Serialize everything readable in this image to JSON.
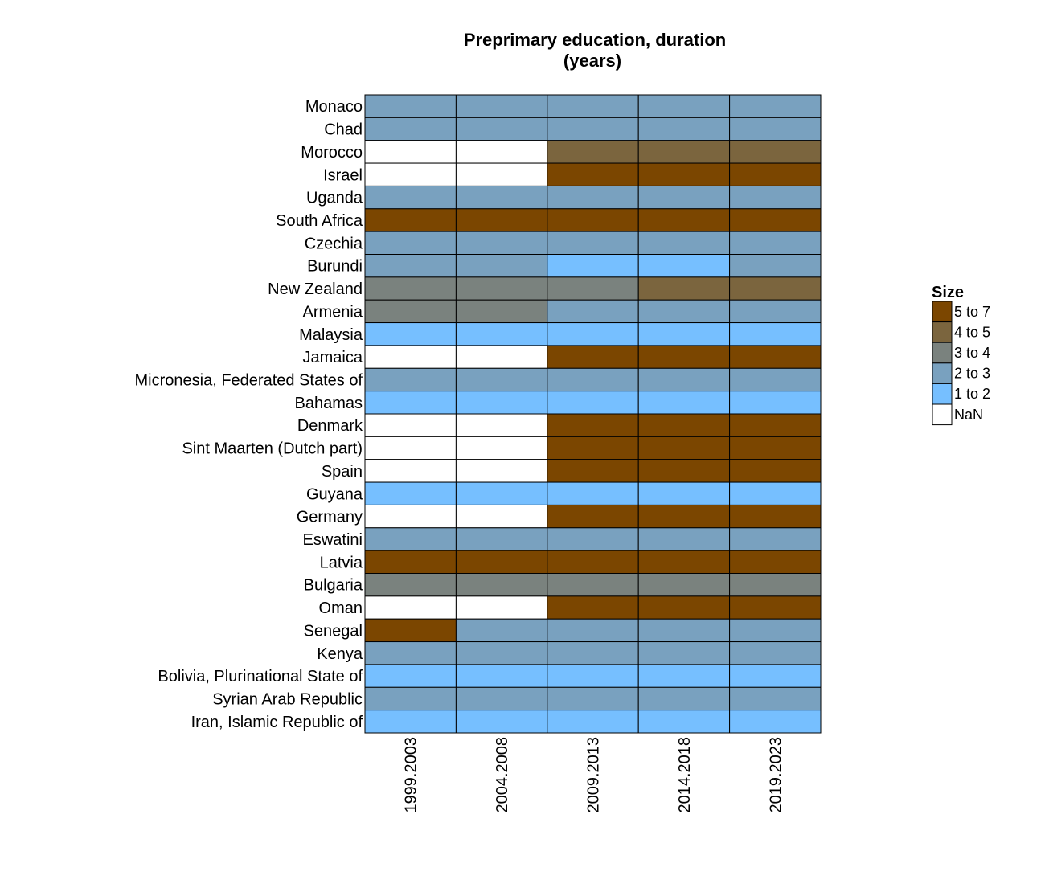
{
  "chart_data": {
    "type": "heatmap",
    "title_lines": [
      "Preprimary education, duration",
      "(years)"
    ],
    "xlabel": "",
    "ylabel": "",
    "columns": [
      "1999.2003",
      "2004.2008",
      "2009.2013",
      "2014.2018",
      "2019.2023"
    ],
    "rows": [
      {
        "name": "Monaco",
        "values": [
          "2 to 3",
          "2 to 3",
          "2 to 3",
          "2 to 3",
          "2 to 3"
        ]
      },
      {
        "name": "Chad",
        "values": [
          "2 to 3",
          "2 to 3",
          "2 to 3",
          "2 to 3",
          "2 to 3"
        ]
      },
      {
        "name": "Morocco",
        "values": [
          "NaN",
          "NaN",
          "4 to 5",
          "4 to 5",
          "4 to 5"
        ]
      },
      {
        "name": "Israel",
        "values": [
          "NaN",
          "NaN",
          "5 to 7",
          "5 to 7",
          "5 to 7"
        ]
      },
      {
        "name": "Uganda",
        "values": [
          "2 to 3",
          "2 to 3",
          "2 to 3",
          "2 to 3",
          "2 to 3"
        ]
      },
      {
        "name": "South Africa",
        "values": [
          "5 to 7",
          "5 to 7",
          "5 to 7",
          "5 to 7",
          "5 to 7"
        ]
      },
      {
        "name": "Czechia",
        "values": [
          "2 to 3",
          "2 to 3",
          "2 to 3",
          "2 to 3",
          "2 to 3"
        ]
      },
      {
        "name": "Burundi",
        "values": [
          "2 to 3",
          "2 to 3",
          "1 to 2",
          "1 to 2",
          "2 to 3"
        ]
      },
      {
        "name": "New Zealand",
        "values": [
          "3 to 4",
          "3 to 4",
          "3 to 4",
          "4 to 5",
          "4 to 5"
        ]
      },
      {
        "name": "Armenia",
        "values": [
          "3 to 4",
          "3 to 4",
          "2 to 3",
          "2 to 3",
          "2 to 3"
        ]
      },
      {
        "name": "Malaysia",
        "values": [
          "1 to 2",
          "1 to 2",
          "1 to 2",
          "1 to 2",
          "1 to 2"
        ]
      },
      {
        "name": "Jamaica",
        "values": [
          "NaN",
          "NaN",
          "5 to 7",
          "5 to 7",
          "5 to 7"
        ]
      },
      {
        "name": "Micronesia, Federated States of",
        "values": [
          "2 to 3",
          "2 to 3",
          "2 to 3",
          "2 to 3",
          "2 to 3"
        ]
      },
      {
        "name": "Bahamas",
        "values": [
          "1 to 2",
          "1 to 2",
          "1 to 2",
          "1 to 2",
          "1 to 2"
        ]
      },
      {
        "name": "Denmark",
        "values": [
          "NaN",
          "NaN",
          "5 to 7",
          "5 to 7",
          "5 to 7"
        ]
      },
      {
        "name": "Sint Maarten (Dutch part)",
        "values": [
          "NaN",
          "NaN",
          "5 to 7",
          "5 to 7",
          "5 to 7"
        ]
      },
      {
        "name": "Spain",
        "values": [
          "NaN",
          "NaN",
          "5 to 7",
          "5 to 7",
          "5 to 7"
        ]
      },
      {
        "name": "Guyana",
        "values": [
          "1 to 2",
          "1 to 2",
          "1 to 2",
          "1 to 2",
          "1 to 2"
        ]
      },
      {
        "name": "Germany",
        "values": [
          "NaN",
          "NaN",
          "5 to 7",
          "5 to 7",
          "5 to 7"
        ]
      },
      {
        "name": "Eswatini",
        "values": [
          "2 to 3",
          "2 to 3",
          "2 to 3",
          "2 to 3",
          "2 to 3"
        ]
      },
      {
        "name": "Latvia",
        "values": [
          "5 to 7",
          "5 to 7",
          "5 to 7",
          "5 to 7",
          "5 to 7"
        ]
      },
      {
        "name": "Bulgaria",
        "values": [
          "3 to 4",
          "3 to 4",
          "3 to 4",
          "3 to 4",
          "3 to 4"
        ]
      },
      {
        "name": "Oman",
        "values": [
          "NaN",
          "NaN",
          "5 to 7",
          "5 to 7",
          "5 to 7"
        ]
      },
      {
        "name": "Senegal",
        "values": [
          "5 to 7",
          "2 to 3",
          "2 to 3",
          "2 to 3",
          "2 to 3"
        ]
      },
      {
        "name": "Kenya",
        "values": [
          "2 to 3",
          "2 to 3",
          "2 to 3",
          "2 to 3",
          "2 to 3"
        ]
      },
      {
        "name": "Bolivia, Plurinational State of",
        "values": [
          "1 to 2",
          "1 to 2",
          "1 to 2",
          "1 to 2",
          "1 to 2"
        ]
      },
      {
        "name": "Syrian Arab Republic",
        "values": [
          "2 to 3",
          "2 to 3",
          "2 to 3",
          "2 to 3",
          "2 to 3"
        ]
      },
      {
        "name": "Iran, Islamic Republic of",
        "values": [
          "1 to 2",
          "1 to 2",
          "1 to 2",
          "1 to 2",
          "1 to 2"
        ]
      }
    ],
    "legend": {
      "title": "Size",
      "position": "right",
      "items": [
        {
          "label": "5 to 7",
          "color": "#7b4600"
        },
        {
          "label": "4 to 5",
          "color": "#7b653e"
        },
        {
          "label": "3 to 4",
          "color": "#7a827e"
        },
        {
          "label": "2 to 3",
          "color": "#79a1bf"
        },
        {
          "label": "1 to 2",
          "color": "#76bfff"
        },
        {
          "label": "NaN",
          "color": "#ffffff"
        }
      ]
    }
  }
}
